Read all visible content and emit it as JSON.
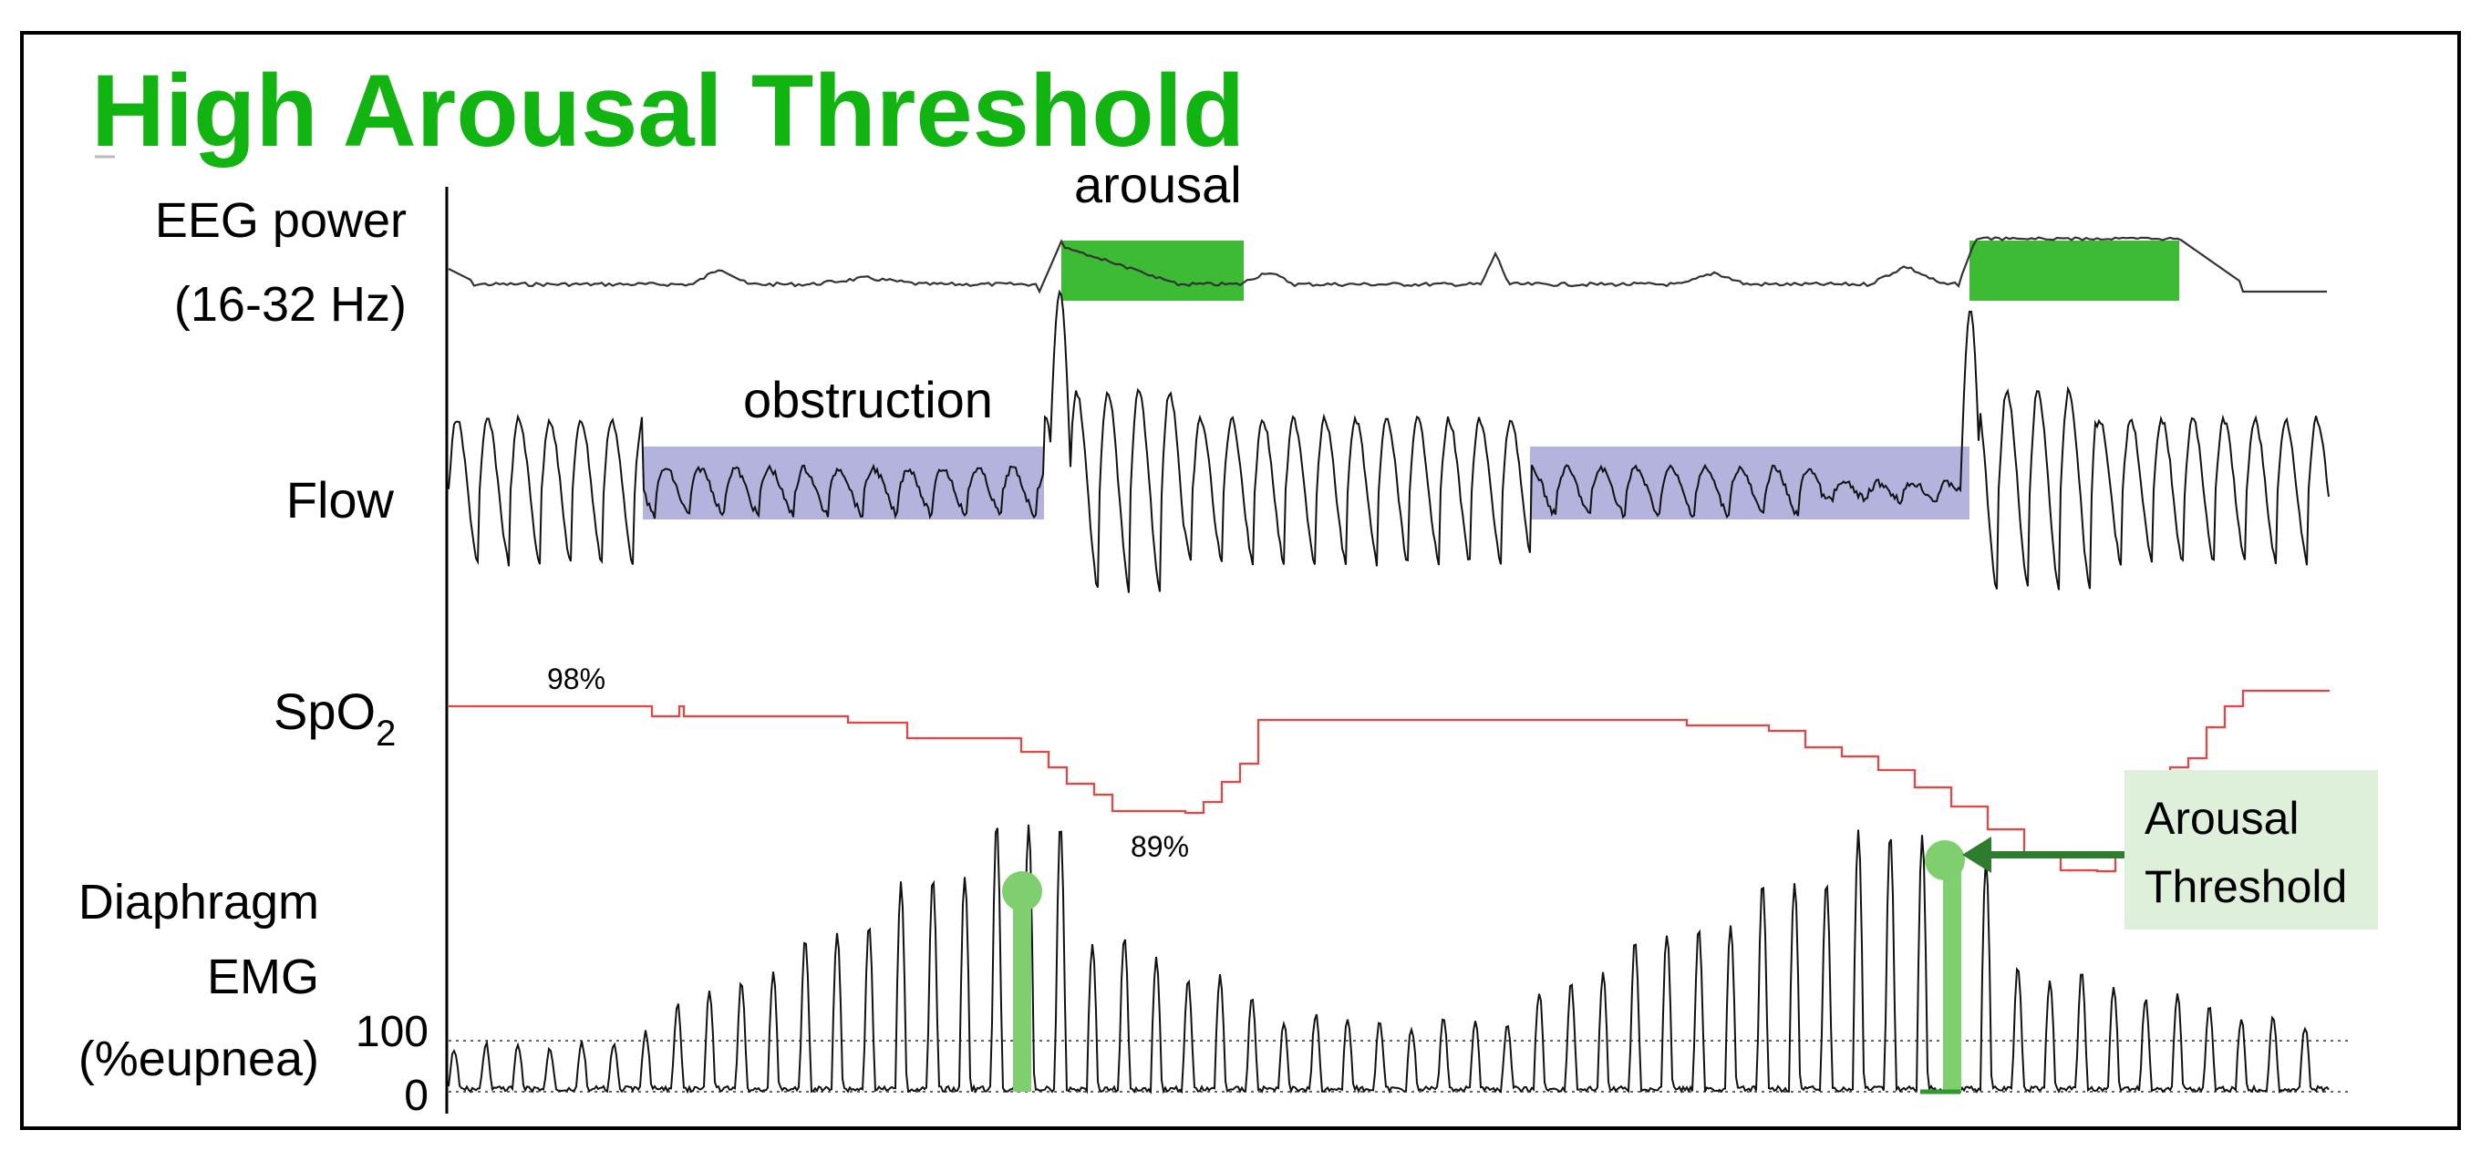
{
  "title": "High Arousal Threshold",
  "labels": {
    "eeg_line1": "EEG power",
    "eeg_line2": "(16-32 Hz)",
    "flow": "Flow",
    "spo2_base": "SpO",
    "spo2_sub": "2",
    "emg_line1": "Diaphragm",
    "emg_line2": "EMG",
    "emg_line3": "(%eupnea)",
    "emg_tick_100": "100",
    "emg_tick_0": "0"
  },
  "annotations": {
    "arousal": "arousal",
    "obstruction": "obstruction",
    "spo2_high": "98%",
    "spo2_low": "89%",
    "threshold_line1": "Arousal",
    "threshold_line2": "Threshold"
  },
  "colors": {
    "title": "#11b411",
    "arousal_box": "#3dbb35",
    "obstruction_box": "#b3b3de",
    "spo2_trace": "#f04040",
    "threshold_marker": "#7fcf6f",
    "threshold_box": "#dff0da",
    "threshold_arrow": "#2e7d2e",
    "trace": "#222222"
  }
}
